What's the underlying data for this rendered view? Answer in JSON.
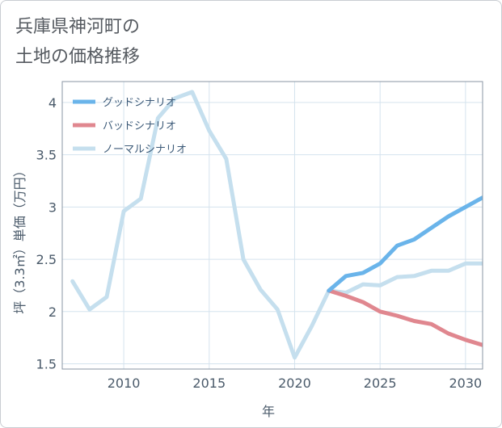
{
  "page": {
    "title_lines": [
      "兵庫県神河町の",
      "土地の価格推移"
    ]
  },
  "chart_data": {
    "type": "line",
    "xlabel": "年",
    "ylabel": "坪（3.3㎡）単価（万円）",
    "xlim": [
      2006.4,
      2031
    ],
    "ylim": [
      1.45,
      4.2
    ],
    "xticks": [
      2010,
      2015,
      2020,
      2025,
      2030
    ],
    "yticks": [
      1.5,
      2,
      2.5,
      3,
      3.5,
      4
    ],
    "grid": true,
    "legend_position": "top-left",
    "series": [
      {
        "name": "グッドシナリオ",
        "color": "#6ab4ea",
        "x": [
          2022,
          2023,
          2024,
          2025,
          2026,
          2027,
          2028,
          2029,
          2030,
          2031
        ],
        "y": [
          2.2,
          2.34,
          2.37,
          2.46,
          2.63,
          2.69,
          2.8,
          2.91,
          3.0,
          3.09
        ]
      },
      {
        "name": "バッドシナリオ",
        "color": "#e0878f",
        "x": [
          2022,
          2023,
          2024,
          2025,
          2026,
          2027,
          2028,
          2029,
          2030,
          2031
        ],
        "y": [
          2.2,
          2.15,
          2.09,
          2.0,
          1.96,
          1.91,
          1.88,
          1.79,
          1.73,
          1.68
        ]
      },
      {
        "name": "ノーマルシナリオ",
        "color": "#c5dfee",
        "x": [
          2007,
          2008,
          2009,
          2010,
          2011,
          2012,
          2013,
          2014,
          2015,
          2016,
          2017,
          2018,
          2019,
          2020,
          2021,
          2022,
          2023,
          2024,
          2025,
          2026,
          2027,
          2028,
          2029,
          2030,
          2031
        ],
        "y": [
          2.29,
          2.02,
          2.14,
          2.96,
          3.08,
          3.85,
          4.04,
          4.1,
          3.73,
          3.46,
          2.5,
          2.21,
          2.02,
          1.56,
          1.86,
          2.2,
          2.18,
          2.26,
          2.25,
          2.33,
          2.34,
          2.39,
          2.39,
          2.46,
          2.46
        ]
      }
    ]
  }
}
